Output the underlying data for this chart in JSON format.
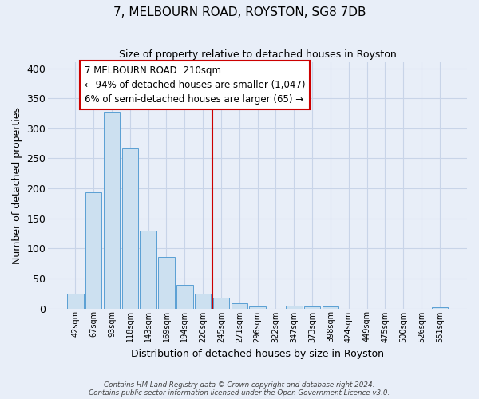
{
  "title": "7, MELBOURN ROAD, ROYSTON, SG8 7DB",
  "subtitle": "Size of property relative to detached houses in Royston",
  "xlabel": "Distribution of detached houses by size in Royston",
  "ylabel": "Number of detached properties",
  "bar_color": "#cce0f0",
  "bar_edge_color": "#5a9fd4",
  "background_color": "#e8eef8",
  "plot_bg_color": "#e8eef8",
  "bin_labels": [
    "42sqm",
    "67sqm",
    "93sqm",
    "118sqm",
    "143sqm",
    "169sqm",
    "194sqm",
    "220sqm",
    "245sqm",
    "271sqm",
    "296sqm",
    "322sqm",
    "347sqm",
    "373sqm",
    "398sqm",
    "424sqm",
    "449sqm",
    "475sqm",
    "500sqm",
    "526sqm",
    "551sqm"
  ],
  "bar_values": [
    25,
    193,
    328,
    266,
    130,
    86,
    39,
    25,
    18,
    8,
    4,
    0,
    5,
    3,
    3,
    0,
    0,
    0,
    0,
    0,
    2
  ],
  "vline_pos": 7.5,
  "vline_color": "#cc0000",
  "annotation_title": "7 MELBOURN ROAD: 210sqm",
  "annotation_line1": "← 94% of detached houses are smaller (1,047)",
  "annotation_line2": "6% of semi-detached houses are larger (65) →",
  "annotation_box_facecolor": "#ffffff",
  "annotation_box_edgecolor": "#cc0000",
  "ylim": [
    0,
    410
  ],
  "yticks": [
    0,
    50,
    100,
    150,
    200,
    250,
    300,
    350,
    400
  ],
  "grid_color": "#c8d4e8",
  "title_fontsize": 11,
  "subtitle_fontsize": 9,
  "ylabel_fontsize": 9,
  "xlabel_fontsize": 9,
  "footnote1": "Contains HM Land Registry data © Crown copyright and database right 2024.",
  "footnote2": "Contains public sector information licensed under the Open Government Licence v3.0."
}
